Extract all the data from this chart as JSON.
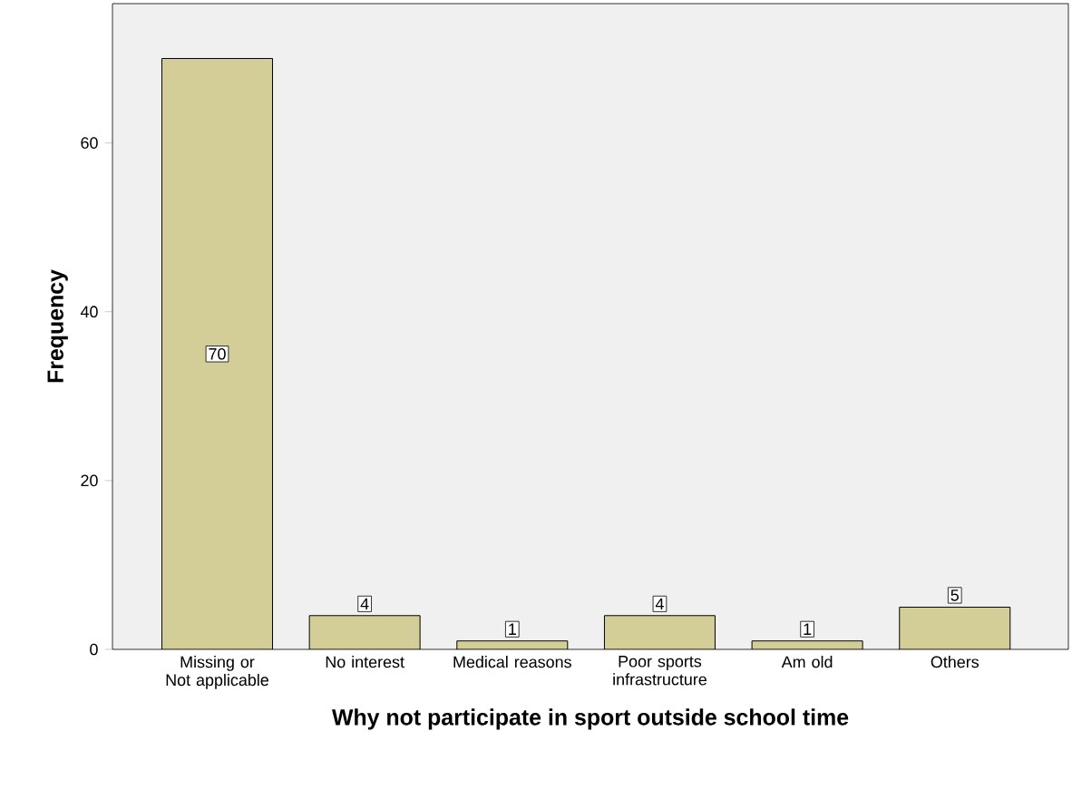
{
  "chart_data": {
    "type": "bar",
    "xlabel": "Why not participate in sport outside school time",
    "ylabel": "Frequency",
    "categories": [
      "Missing or Not applicable",
      "No interest",
      "Medical reasons",
      "Poor sports infrastructure",
      "Am old",
      "Others"
    ],
    "values": [
      70,
      4,
      1,
      4,
      1,
      5
    ],
    "color": "#d3ce97",
    "data_labels": true,
    "ylim": [
      0,
      76.5
    ],
    "yticks": [
      0,
      20,
      40,
      60
    ],
    "grid": false
  }
}
